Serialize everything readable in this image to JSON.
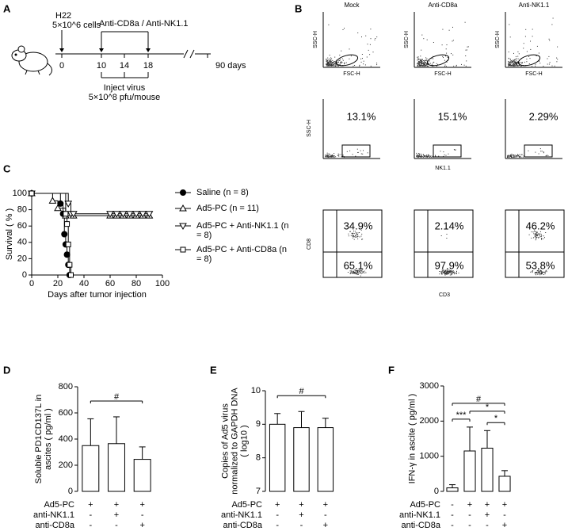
{
  "panel_labels": [
    "A",
    "B",
    "C",
    "D",
    "E",
    "F"
  ],
  "panel_a": {
    "cell_line": "H22",
    "cells": "5×10^6 cells",
    "treatment": "Anti-CD8a / Anti-NK1.1",
    "timeline_ticks": [
      "0",
      "10",
      "14",
      "18"
    ],
    "end": "90 days",
    "injection": "Inject virus",
    "dose": "5×10^8 pfu/mouse"
  },
  "panel_b": {
    "columns": [
      "Mock",
      "Anti-CD8a",
      "Anti-NK1.1"
    ],
    "scatter_x_label": "FSC-H",
    "scatter_y_label": "SSC-H",
    "nk_x_label": "NK1.1",
    "nk_y_label": "SSC-H",
    "nk_percent": [
      "13.1%",
      "15.1%",
      "2.29%"
    ],
    "cd_x_label": "CD3",
    "cd_y_label": "CD8",
    "cd_upper": [
      "34.9%",
      "2.14%",
      "46.2%"
    ],
    "cd_lower": [
      "65.1%",
      "97.9%",
      "53.8%"
    ]
  },
  "chart_data": [
    {
      "type": "survival",
      "x_label": "Days after tumor injection",
      "y_label": "Survival ( % )",
      "xlim": [
        0,
        100
      ],
      "xticks": [
        0,
        20,
        40,
        60,
        80,
        100
      ],
      "ylim": [
        0,
        100
      ],
      "yticks": [
        0,
        20,
        40,
        60,
        80,
        100
      ],
      "series": [
        {
          "name": "Saline (n = 8)",
          "color": "#000000",
          "marker": "circle",
          "fill": "#000000",
          "x": [
            0,
            22,
            24,
            25,
            26,
            27,
            28,
            29
          ],
          "values": [
            100,
            87.5,
            75,
            50,
            37.5,
            25,
            12.5,
            0
          ]
        },
        {
          "name": "Ad5-PC (n = 11)",
          "color": "#000000",
          "marker": "triangle-up",
          "fill": "#ffffff",
          "x": [
            0,
            16,
            20,
            26,
            32,
            60,
            65,
            70,
            75,
            80,
            85,
            90
          ],
          "values": [
            100,
            90.9,
            81.8,
            72.7,
            72.7,
            72.7,
            72.7,
            72.7,
            72.7,
            72.7,
            72.7,
            72.7
          ]
        },
        {
          "name": "Ad5-PC + Anti-NK1.1 (n = 8)",
          "color": "#000000",
          "marker": "triangle-down",
          "fill": "#ffffff",
          "x": [
            0,
            28,
            30,
            32,
            60,
            65,
            70,
            75,
            80,
            85,
            90
          ],
          "values": [
            100,
            87.5,
            75,
            75,
            75,
            75,
            75,
            75,
            75,
            75,
            75
          ]
        },
        {
          "name": "Ad5-PC + Anti-CD8a (n = 8)",
          "color": "#000000",
          "marker": "square",
          "fill": "#ffffff",
          "x": [
            0,
            26,
            27,
            28,
            29,
            30
          ],
          "values": [
            100,
            75,
            62.5,
            37.5,
            12.5,
            0
          ]
        }
      ]
    },
    {
      "type": "bar",
      "y_label": "Soluble PD1CD137L in ascites ( pg/ml )",
      "ylim": [
        0,
        800
      ],
      "yticks": [
        0,
        200,
        400,
        600,
        800
      ],
      "values": [
        350,
        365,
        245
      ],
      "errors": [
        205,
        205,
        95
      ],
      "rows": [
        {
          "label": "Ad5-PC",
          "marks": [
            "+",
            "+",
            "+"
          ]
        },
        {
          "label": "anti-NK1.1",
          "marks": [
            "-",
            "+",
            "-"
          ]
        },
        {
          "label": "anti-CD8a",
          "marks": [
            "-",
            "-",
            "+"
          ]
        }
      ],
      "annotations": [
        {
          "text": "#",
          "groups": [
            0,
            2
          ]
        }
      ]
    },
    {
      "type": "bar",
      "y_label": "Copies of Ad5 virus normalized to GAPDH DNA ( log10 )",
      "ylim": [
        7,
        10
      ],
      "yticks": [
        7,
        8,
        9,
        10
      ],
      "values": [
        9.0,
        8.9,
        8.9
      ],
      "errors": [
        0.32,
        0.48,
        0.28
      ],
      "rows": [
        {
          "label": "Ad5-PC",
          "marks": [
            "+",
            "+",
            "+"
          ]
        },
        {
          "label": "anti-NK1.1",
          "marks": [
            "-",
            "+",
            "-"
          ]
        },
        {
          "label": "anti-CD8a",
          "marks": [
            "-",
            "-",
            "+"
          ]
        }
      ],
      "annotations": [
        {
          "text": "#",
          "groups": [
            0,
            2
          ]
        }
      ]
    },
    {
      "type": "bar",
      "y_label": "IFN-γ in ascite ( pg/ml )",
      "ylim": [
        0,
        3000
      ],
      "yticks": [
        0,
        1000,
        2000,
        3000
      ],
      "values": [
        100,
        1150,
        1230,
        430
      ],
      "errors": [
        90,
        680,
        500,
        160
      ],
      "rows": [
        {
          "label": "Ad5-PC",
          "marks": [
            "-",
            "+",
            "+",
            "+"
          ]
        },
        {
          "label": "anti-NK1.1",
          "marks": [
            "-",
            "-",
            "+",
            "-"
          ]
        },
        {
          "label": "anti-CD8a",
          "marks": [
            "-",
            "-",
            "-",
            "+"
          ]
        }
      ],
      "annotations": [
        {
          "text": "#",
          "groups": [
            0,
            3
          ]
        },
        {
          "text": "*",
          "groups": [
            1,
            3
          ]
        },
        {
          "text": "***",
          "groups": [
            0,
            1
          ]
        },
        {
          "text": "*",
          "groups": [
            2,
            3
          ]
        }
      ]
    }
  ]
}
